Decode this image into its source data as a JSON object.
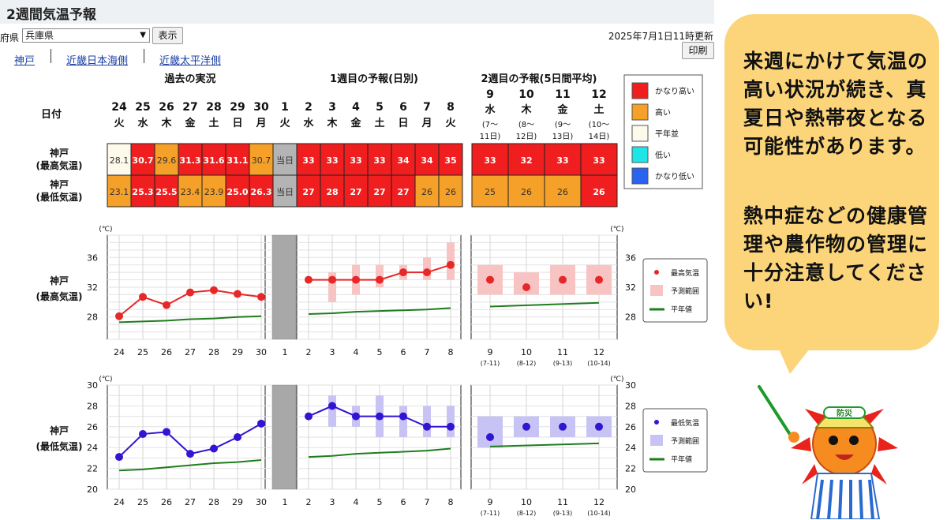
{
  "page": {
    "title": "2週間気温予報",
    "pref_label": "府県",
    "pref_value": "兵庫県",
    "show_button": "表示",
    "updated": "2025年7月1日11時更新",
    "print_button": "印刷",
    "nav": [
      "神戸",
      "近畿日本海側",
      "近畿太平洋側"
    ]
  },
  "bubble": {
    "text1": "来週にかけて気温の高い状況が続き、真夏日や熱帯夜となる可能性があります。",
    "text2": "熱中症などの健康管理や農作物の管理に十分注意してください!",
    "badge": "防災"
  },
  "colors": {
    "very_high": "#f01e1e",
    "high": "#f5a028",
    "normal": "#fdfaeb",
    "low": "#1ee6e6",
    "very_low": "#2864f0",
    "today": "#b4b4b4",
    "max_line": "#e62828",
    "max_range": "#f8c3c3",
    "min_line": "#3214d2",
    "min_range": "#c8c3f5",
    "normal_line": "#1e7d1e"
  },
  "chart_data": {
    "type": "table",
    "section_headers": [
      "過去の実況",
      "1週目の予報(日別)",
      "2週目の予報(5日間平均)"
    ],
    "date_label": "日付",
    "days": [
      {
        "d": "24",
        "w": "火"
      },
      {
        "d": "25",
        "w": "水"
      },
      {
        "d": "26",
        "w": "木"
      },
      {
        "d": "27",
        "w": "金"
      },
      {
        "d": "28",
        "w": "土"
      },
      {
        "d": "29",
        "w": "日"
      },
      {
        "d": "30",
        "w": "月"
      },
      {
        "d": "1",
        "w": "火"
      },
      {
        "d": "2",
        "w": "水"
      },
      {
        "d": "3",
        "w": "木"
      },
      {
        "d": "4",
        "w": "金"
      },
      {
        "d": "5",
        "w": "土"
      },
      {
        "d": "6",
        "w": "日"
      },
      {
        "d": "7",
        "w": "月"
      },
      {
        "d": "8",
        "w": "火"
      }
    ],
    "weeks": [
      {
        "d": "9",
        "w": "水",
        "r1": "(7〜",
        "r2": "11日)",
        "ax": "(7-11)"
      },
      {
        "d": "10",
        "w": "木",
        "r1": "(8〜",
        "r2": "12日)",
        "ax": "(8-12)"
      },
      {
        "d": "11",
        "w": "金",
        "r1": "(9〜",
        "r2": "13日)",
        "ax": "(9-13)"
      },
      {
        "d": "12",
        "w": "土",
        "r1": "(10〜",
        "r2": "14日)",
        "ax": "(10-14)"
      }
    ],
    "row_labels": [
      [
        "神戸",
        "(最高気温)"
      ],
      [
        "神戸",
        "(最低気温)"
      ]
    ],
    "today_label": "当日",
    "max_row": [
      {
        "v": "28.1",
        "c": "normal"
      },
      {
        "v": "30.7",
        "c": "very_high"
      },
      {
        "v": "29.6",
        "c": "high"
      },
      {
        "v": "31.3",
        "c": "very_high"
      },
      {
        "v": "31.6",
        "c": "very_high"
      },
      {
        "v": "31.1",
        "c": "very_high"
      },
      {
        "v": "30.7",
        "c": "high"
      },
      {
        "v": "当日",
        "c": "today"
      },
      {
        "v": "33",
        "c": "very_high"
      },
      {
        "v": "33",
        "c": "very_high"
      },
      {
        "v": "33",
        "c": "very_high"
      },
      {
        "v": "33",
        "c": "very_high"
      },
      {
        "v": "34",
        "c": "very_high"
      },
      {
        "v": "34",
        "c": "very_high"
      },
      {
        "v": "35",
        "c": "very_high"
      },
      {
        "v": "33",
        "c": "very_high"
      },
      {
        "v": "32",
        "c": "very_high"
      },
      {
        "v": "33",
        "c": "very_high"
      },
      {
        "v": "33",
        "c": "very_high"
      }
    ],
    "min_row": [
      {
        "v": "23.1",
        "c": "high"
      },
      {
        "v": "25.3",
        "c": "very_high"
      },
      {
        "v": "25.5",
        "c": "very_high"
      },
      {
        "v": "23.4",
        "c": "high"
      },
      {
        "v": "23.9",
        "c": "high"
      },
      {
        "v": "25.0",
        "c": "very_high"
      },
      {
        "v": "26.3",
        "c": "very_high"
      },
      {
        "v": "当日",
        "c": "today"
      },
      {
        "v": "27",
        "c": "very_high"
      },
      {
        "v": "28",
        "c": "very_high"
      },
      {
        "v": "27",
        "c": "very_high"
      },
      {
        "v": "27",
        "c": "very_high"
      },
      {
        "v": "27",
        "c": "very_high"
      },
      {
        "v": "26",
        "c": "high"
      },
      {
        "v": "26",
        "c": "high"
      },
      {
        "v": "25",
        "c": "high"
      },
      {
        "v": "26",
        "c": "high"
      },
      {
        "v": "26",
        "c": "high"
      },
      {
        "v": "26",
        "c": "very_high"
      }
    ],
    "legend": [
      {
        "label": "かなり高い",
        "c": "very_high"
      },
      {
        "label": "高い",
        "c": "high"
      },
      {
        "label": "平年並",
        "c": "normal"
      },
      {
        "label": "低い",
        "c": "low"
      },
      {
        "label": "かなり低い",
        "c": "very_low"
      }
    ],
    "unit": "(℃)",
    "max_chart": {
      "label": [
        "神戸",
        "(最高気温)"
      ],
      "ylim": [
        25,
        39
      ],
      "ticks": [
        28,
        32,
        36
      ],
      "past": [
        28.1,
        30.7,
        29.6,
        31.3,
        31.6,
        31.1,
        30.7
      ],
      "past_normal": [
        27.3,
        27.4,
        27.5,
        27.7,
        27.8,
        28.0,
        28.1
      ],
      "week1": [
        33,
        33,
        33,
        33,
        34,
        34,
        35
      ],
      "week1_range": [
        null,
        [
          30,
          34
        ],
        [
          31,
          35
        ],
        [
          32,
          35
        ],
        [
          33,
          35
        ],
        [
          33,
          36
        ],
        [
          33,
          38
        ]
      ],
      "week1_normal": [
        28.4,
        28.5,
        28.7,
        28.8,
        28.9,
        29.0,
        29.2
      ],
      "week2": [
        33,
        32,
        33,
        33
      ],
      "week2_range": [
        [
          31,
          35
        ],
        [
          31,
          34
        ],
        [
          31,
          35
        ],
        [
          31,
          35
        ]
      ],
      "week2_normal": [
        29.4,
        29.6,
        29.8,
        29.9
      ],
      "legend": [
        "最高気温",
        "予測範囲",
        "平年値"
      ]
    },
    "min_chart": {
      "label": [
        "神戸",
        "(最低気温)"
      ],
      "ylim": [
        20,
        30
      ],
      "ticks": [
        20,
        22,
        24,
        26,
        28,
        30
      ],
      "past": [
        23.1,
        25.3,
        25.5,
        23.4,
        23.9,
        25.0,
        26.3
      ],
      "past_normal": [
        21.8,
        21.9,
        22.1,
        22.3,
        22.5,
        22.6,
        22.8
      ],
      "week1": [
        27,
        28,
        27,
        27,
        27,
        26,
        26
      ],
      "week1_range": [
        null,
        [
          26,
          29
        ],
        [
          26,
          28
        ],
        [
          25,
          29
        ],
        [
          25,
          28
        ],
        [
          25,
          28
        ],
        [
          25,
          28
        ]
      ],
      "week1_normal": [
        23.1,
        23.2,
        23.4,
        23.5,
        23.6,
        23.7,
        23.9
      ],
      "week2": [
        25,
        26,
        26,
        26
      ],
      "week2_range": [
        [
          24,
          27
        ],
        [
          25,
          27
        ],
        [
          25,
          27
        ],
        [
          25,
          27
        ]
      ],
      "week2_normal": [
        24.1,
        24.2,
        24.3,
        24.4
      ],
      "legend": [
        "最低気温",
        "予測範囲",
        "平年値"
      ]
    }
  }
}
